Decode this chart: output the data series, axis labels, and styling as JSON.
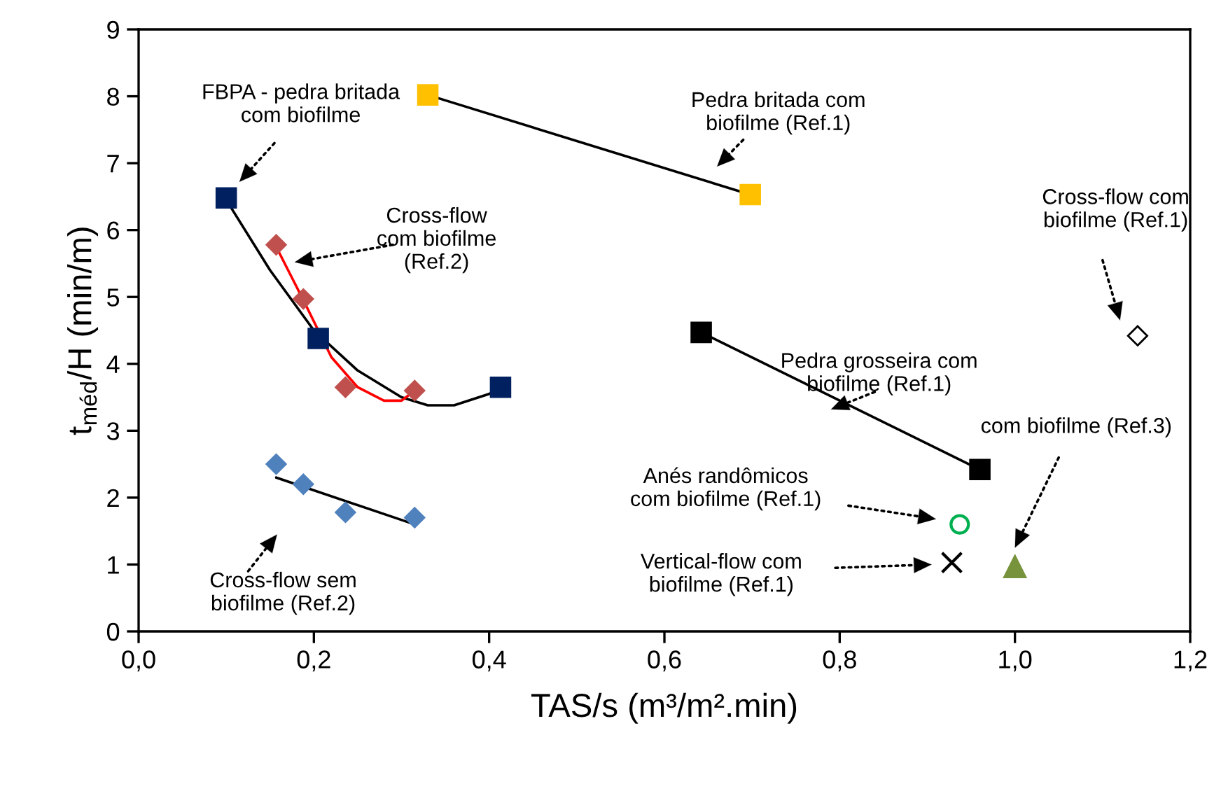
{
  "chart_data": {
    "type": "scatter",
    "xlabel": "TAS/s (m³/m².min)",
    "ylabel": "t$_{méd}$/H (min/m)",
    "xlim": [
      0,
      1.2
    ],
    "ylim": [
      0,
      9
    ],
    "xticks": [
      {
        "value": 0,
        "label": "0,0"
      },
      {
        "value": 0.2,
        "label": "0,2"
      },
      {
        "value": 0.4,
        "label": "0,4"
      },
      {
        "value": 0.6,
        "label": "0,6"
      },
      {
        "value": 0.8,
        "label": "0,8"
      },
      {
        "value": 1.0,
        "label": "1,0"
      },
      {
        "value": 1.2,
        "label": "1,2"
      }
    ],
    "yticks": [
      0,
      1,
      2,
      3,
      4,
      5,
      6,
      7,
      8,
      9
    ],
    "grid": false,
    "legend": false,
    "series": [
      {
        "type": "line",
        "color": "#000000",
        "marker": "none",
        "x": [
          0.1,
          0.15,
          0.2,
          0.25,
          0.3,
          0.33,
          0.36,
          0.4,
          0.413
        ],
        "values": [
          6.45,
          5.4,
          4.5,
          3.9,
          3.5,
          3.38,
          3.38,
          3.55,
          3.65
        ]
      },
      {
        "color": "#002060",
        "marker": "square",
        "x": [
          0.1,
          0.205,
          0.413
        ],
        "values": [
          6.48,
          4.38,
          3.65
        ]
      },
      {
        "type": "line",
        "color": "#ff0000",
        "marker": "none",
        "x": [
          0.157,
          0.19,
          0.22,
          0.25,
          0.28,
          0.3,
          0.315
        ],
        "values": [
          5.75,
          4.9,
          4.1,
          3.65,
          3.45,
          3.45,
          3.6
        ]
      },
      {
        "color": "#c0504d",
        "marker": "diamond",
        "x": [
          0.157,
          0.188,
          0.236,
          0.315
        ],
        "values": [
          5.78,
          4.97,
          3.65,
          3.6
        ]
      },
      {
        "type": "line",
        "color": "#000000",
        "marker": "none",
        "x": [
          0.157,
          0.315
        ],
        "values": [
          2.3,
          1.6
        ]
      },
      {
        "color": "#4f81bd",
        "marker": "diamond",
        "x": [
          0.157,
          0.188,
          0.236,
          0.315
        ],
        "values": [
          2.5,
          2.2,
          1.78,
          1.7
        ]
      },
      {
        "type": "line",
        "color": "#000000",
        "marker": "none",
        "x": [
          0.33,
          0.698
        ],
        "values": [
          8.02,
          6.53
        ]
      },
      {
        "color": "#ffc000",
        "marker": "square",
        "x": [
          0.33,
          0.698
        ],
        "values": [
          8.02,
          6.53
        ]
      },
      {
        "type": "line",
        "color": "#000000",
        "marker": "none",
        "x": [
          0.642,
          0.96
        ],
        "values": [
          4.47,
          2.42
        ]
      },
      {
        "color": "#000000",
        "marker": "square",
        "x": [
          0.642,
          0.96
        ],
        "values": [
          4.47,
          2.42
        ]
      },
      {
        "color": "#000000",
        "marker": "diamond",
        "x": [
          1.14
        ],
        "values": [
          4.42
        ]
      },
      {
        "color": "#00b050",
        "marker": "circle",
        "x": [
          0.937
        ],
        "values": [
          1.6
        ]
      },
      {
        "color": "#000000",
        "marker": "cross",
        "x": [
          0.928
        ],
        "values": [
          1.03
        ]
      },
      {
        "color": "#77933c",
        "marker": "triangle",
        "x": [
          1.0
        ],
        "values": [
          0.97
        ]
      }
    ],
    "annotations": [
      "FBPA - pedra britada\ncom biofilme",
      "Cross-flow\ncom biofilme\n(Ref.2)",
      "Pedra britada com\nbiofilme (Ref.1)",
      "Cross-flow com\nbiofilme (Ref.1)",
      "Pedra grosseira com\nbiofilme (Ref.1)",
      "com biofilme (Ref.3)",
      "Anés randômicos\ncom biofilme (Ref.1)",
      "Vertical-flow com\nbiofilme (Ref.1)",
      "Cross-flow sem\nbiofilme (Ref.2)"
    ]
  }
}
